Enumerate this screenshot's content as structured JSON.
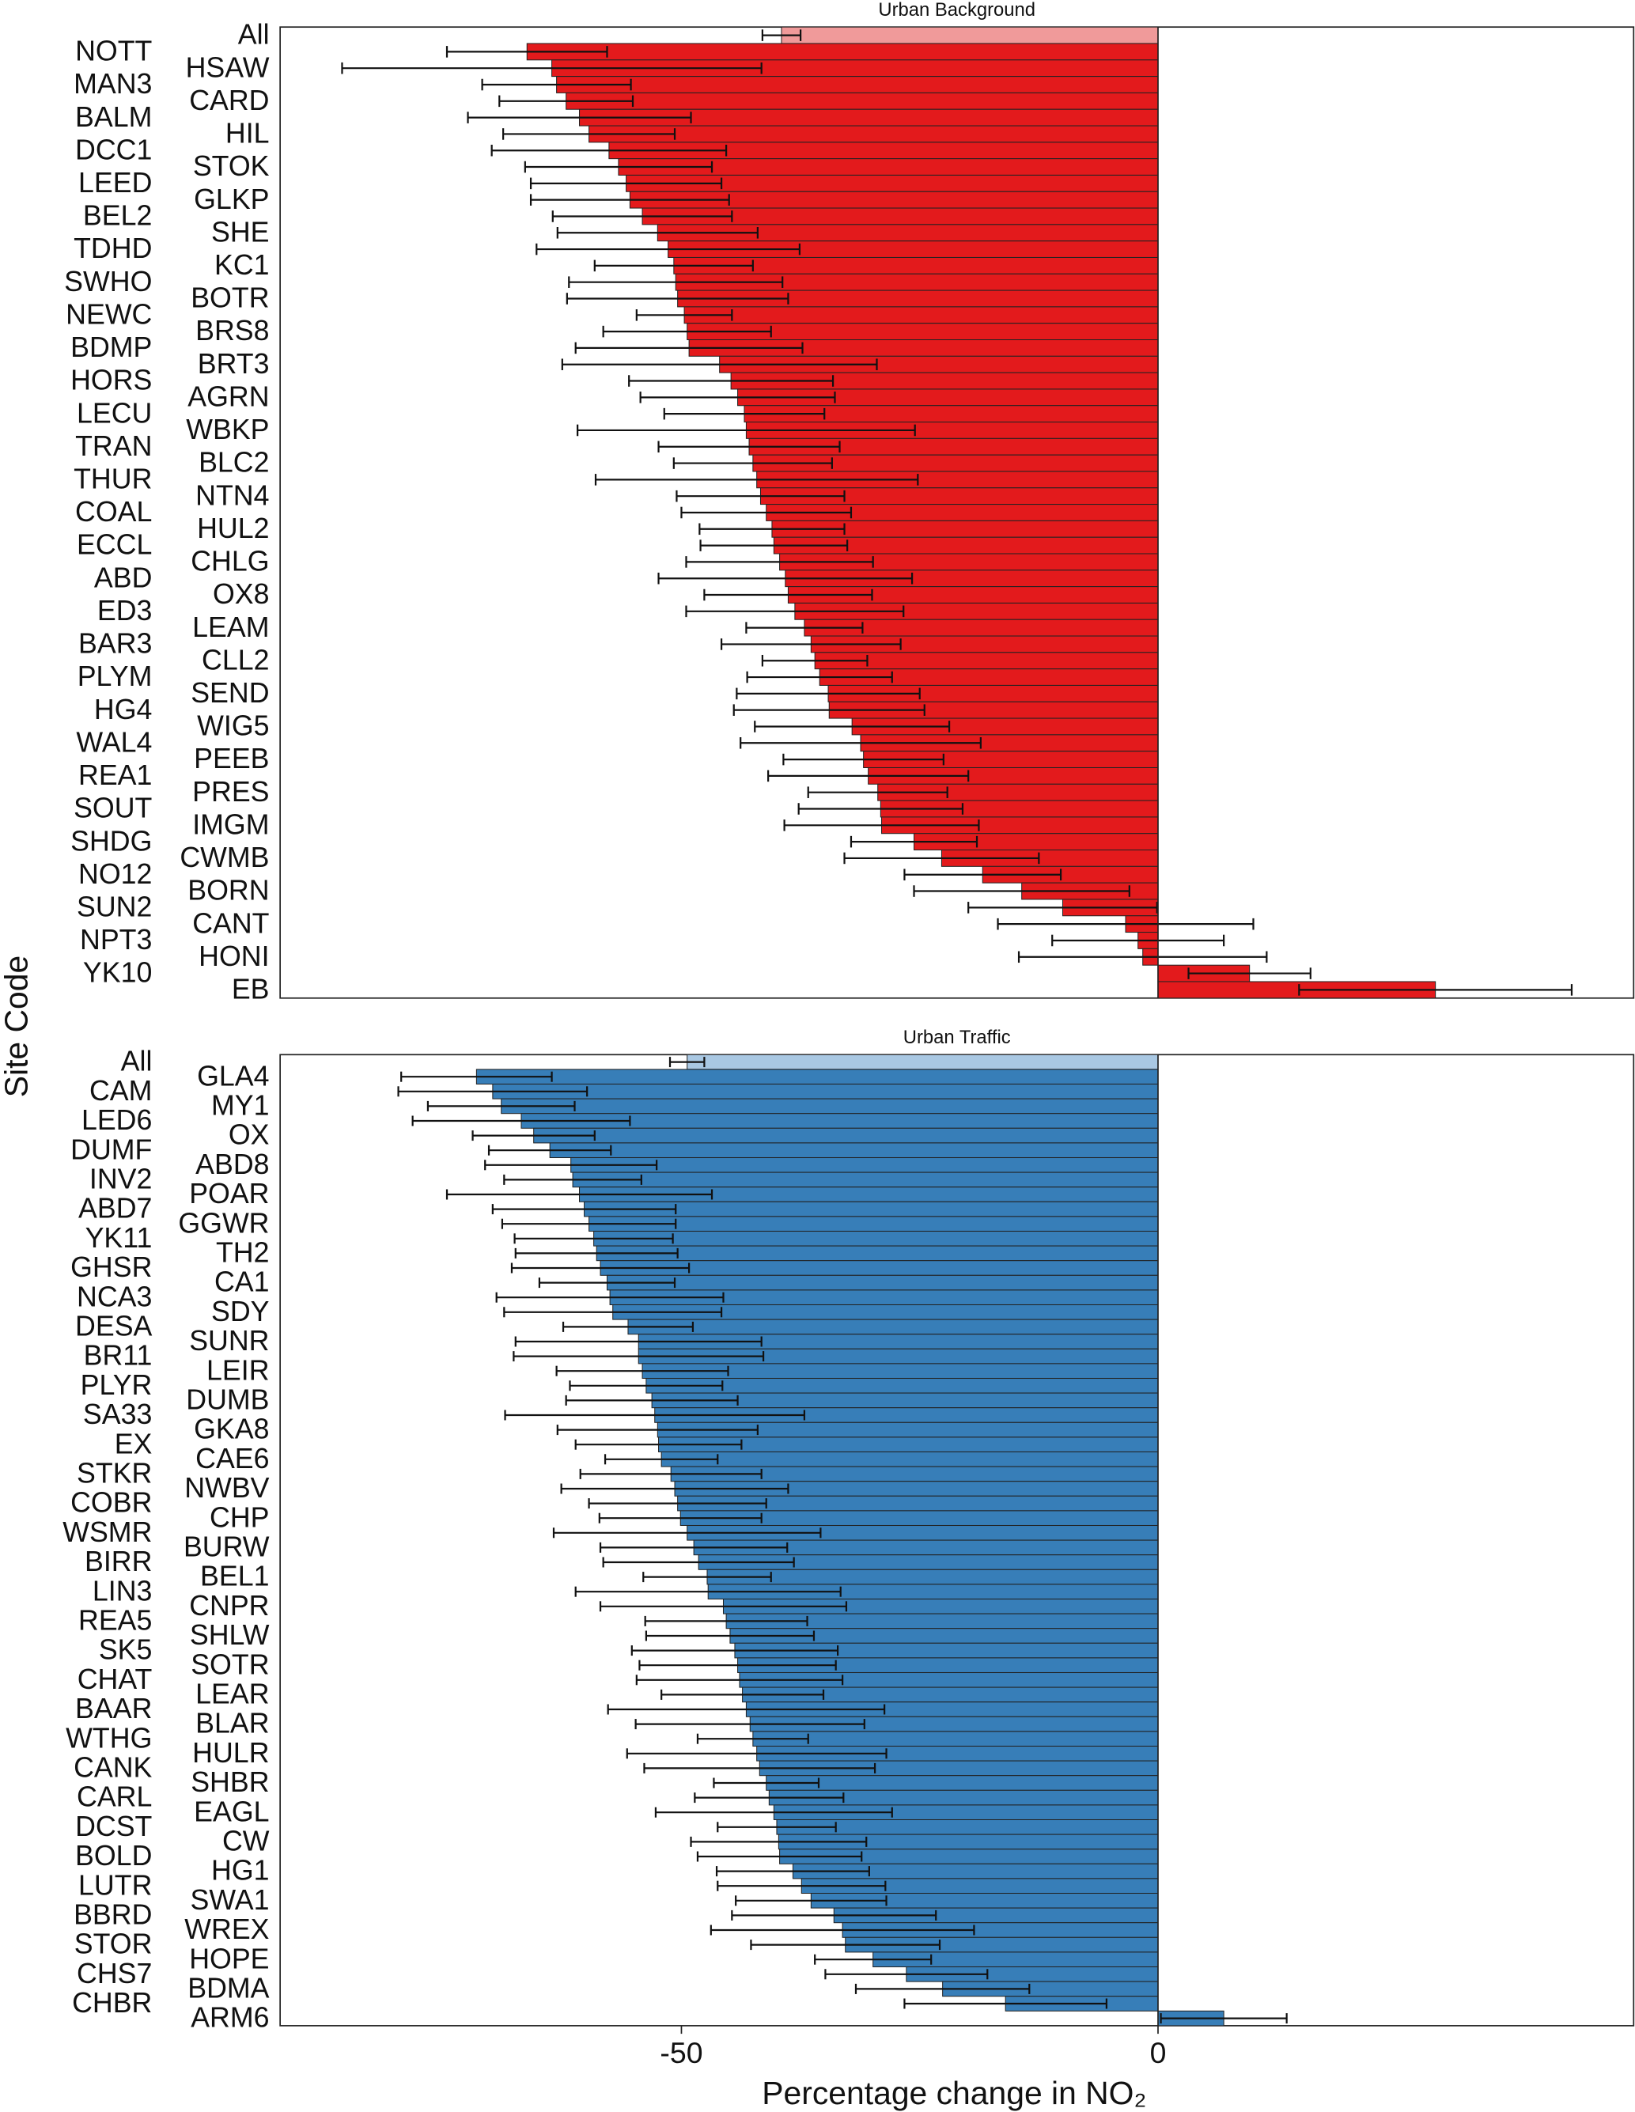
{
  "ylabel": "Site Code",
  "chart_data": [
    {
      "type": "bar",
      "title": "Urban Background",
      "color": "#e31a1c",
      "highlight_color": "#f09a9a",
      "highlight_index": 0,
      "xlim": [
        -92.1,
        49.9
      ],
      "categories": [
        "All",
        "NOTT",
        "HSAW",
        "MAN3",
        "CARD",
        "BALM",
        "HIL",
        "DCC1",
        "STOK",
        "LEED",
        "GLKP",
        "BEL2",
        "SHE",
        "TDHD",
        "KC1",
        "SWHO",
        "BOTR",
        "NEWC",
        "BRS8",
        "BDMP",
        "BRT3",
        "HORS",
        "AGRN",
        "LECU",
        "WBKP",
        "TRAN",
        "BLC2",
        "THUR",
        "NTN4",
        "COAL",
        "HUL2",
        "ECCL",
        "CHLG",
        "ABD",
        "OX8",
        "ED3",
        "LEAM",
        "BAR3",
        "CLL2",
        "PLYM",
        "SEND",
        "HG4",
        "WIG5",
        "WAL4",
        "PEEB",
        "REA1",
        "PRES",
        "SOUT",
        "IMGM",
        "SHDG",
        "CWMB",
        "NO12",
        "BORN",
        "SUN2",
        "CANT",
        "NPT3",
        "HONI",
        "YK10",
        "EB"
      ],
      "values": [
        -39.5,
        -66.2,
        -63.6,
        -63.1,
        -62.1,
        -60.7,
        -59.7,
        -57.6,
        -56.6,
        -55.8,
        -55.4,
        -54.1,
        -52.5,
        -51.4,
        -50.8,
        -50.6,
        -50.4,
        -49.7,
        -49.4,
        -49.2,
        -46,
        -44.8,
        -44.1,
        -43.4,
        -43.2,
        -42.9,
        -42.5,
        -42.1,
        -41.7,
        -41.1,
        -40.5,
        -40.3,
        -39.7,
        -39.1,
        -38.8,
        -38.1,
        -37.1,
        -36.4,
        -36,
        -35.5,
        -34.6,
        -34.5,
        -32.1,
        -31.2,
        -30.9,
        -30.4,
        -29.4,
        -29.1,
        -29,
        -25.6,
        -22.7,
        -18.4,
        -14.3,
        -10,
        -3.4,
        -2.1,
        -1.6,
        9.6,
        29.1
      ],
      "errors": [
        2,
        8.4,
        22,
        7.8,
        7,
        11.7,
        9,
        12.3,
        9.8,
        10,
        10.4,
        9.4,
        10.5,
        13.8,
        8.3,
        11.2,
        11.6,
        5,
        8.8,
        11.9,
        16.5,
        10.7,
        10.2,
        8.4,
        17.7,
        9.5,
        8.3,
        16.9,
        8.8,
        8.9,
        7.6,
        7.7,
        9.8,
        13.3,
        8.8,
        11.4,
        6.1,
        9.4,
        5.5,
        7.6,
        9.6,
        10,
        10.2,
        12.6,
        8.4,
        10.5,
        7.3,
        8.6,
        10.2,
        6.6,
        10.2,
        8.2,
        11.3,
        9.9,
        13.4,
        9,
        13,
        6.4,
        14.3
      ]
    },
    {
      "type": "bar",
      "title": "Urban Traffic",
      "color": "#377eb8",
      "highlight_color": "#a9c8e3",
      "highlight_index": 0,
      "xlim": [
        -92.1,
        49.9
      ],
      "xticks": [
        -50,
        0
      ],
      "xlabel": "Percentage change in NO₂",
      "categories": [
        "All",
        "GLA4",
        "CAM",
        "MY1",
        "LED6",
        "OX",
        "DUMF",
        "ABD8",
        "INV2",
        "POAR",
        "ABD7",
        "GGWR",
        "YK11",
        "TH2",
        "GHSR",
        "CA1",
        "NCA3",
        "SDY",
        "DESA",
        "SUNR",
        "BR11",
        "LEIR",
        "PLYR",
        "DUMB",
        "SA33",
        "GKA8",
        "EX",
        "CAE6",
        "STKR",
        "NWBV",
        "COBR",
        "CHP",
        "WSMR",
        "BURW",
        "BIRR",
        "BEL1",
        "LIN3",
        "CNPR",
        "REA5",
        "SHLW",
        "SK5",
        "SOTR",
        "CHAT",
        "LEAR",
        "BAAR",
        "BLAR",
        "WTHG",
        "HULR",
        "CANK",
        "SHBR",
        "CARL",
        "EAGL",
        "DCST",
        "CW",
        "BOLD",
        "HG1",
        "LUTR",
        "SWA1",
        "BBRD",
        "WREX",
        "STOR",
        "HOPE",
        "CHS7",
        "BDMA",
        "CHBR",
        "ARM6"
      ],
      "values": [
        -49.4,
        -71.5,
        -69.8,
        -68.9,
        -66.8,
        -65.5,
        -63.8,
        -61.6,
        -61.4,
        -60.7,
        -60.2,
        -59.7,
        -59.2,
        -58.9,
        -58.5,
        -57.8,
        -57.5,
        -57.2,
        -55.6,
        -54.5,
        -54.5,
        -54.1,
        -53.7,
        -53.1,
        -52.8,
        -52.5,
        -52.4,
        -52.1,
        -51.1,
        -50.7,
        -50.4,
        -50.1,
        -49.4,
        -48.7,
        -48.2,
        -47.3,
        -47.2,
        -45.6,
        -45.3,
        -44.9,
        -44.4,
        -44.1,
        -43.9,
        -43.6,
        -43.2,
        -42.8,
        -42.5,
        -42.1,
        -41.8,
        -41.1,
        -40.8,
        -40.3,
        -40,
        -39.8,
        -39.7,
        -38.3,
        -37.4,
        -36.4,
        -34,
        -33.1,
        -32.8,
        -29.9,
        -26.4,
        -22.6,
        -16,
        6.9
      ],
      "errors": [
        1.8,
        7.9,
        9.9,
        7.7,
        11.4,
        6.4,
        6.4,
        9,
        7.2,
        13.9,
        9.6,
        9.1,
        8.3,
        8.5,
        9.3,
        7.1,
        11.9,
        11.4,
        6.8,
        12.9,
        13.1,
        9,
        8,
        9,
        15.7,
        10.5,
        8.7,
        5.9,
        9.5,
        11.9,
        9.3,
        8.5,
        14,
        9.8,
        10,
        6.7,
        13.9,
        12.9,
        8.5,
        8.8,
        10.8,
        10.3,
        10.8,
        8.5,
        14.5,
        12,
        5.8,
        13.6,
        12.1,
        5.5,
        7.8,
        12.4,
        6.2,
        9.2,
        8.6,
        8,
        8.8,
        7.9,
        10.7,
        13.8,
        9.9,
        6.1,
        8.5,
        9.1,
        10.6,
        6.6
      ]
    }
  ]
}
